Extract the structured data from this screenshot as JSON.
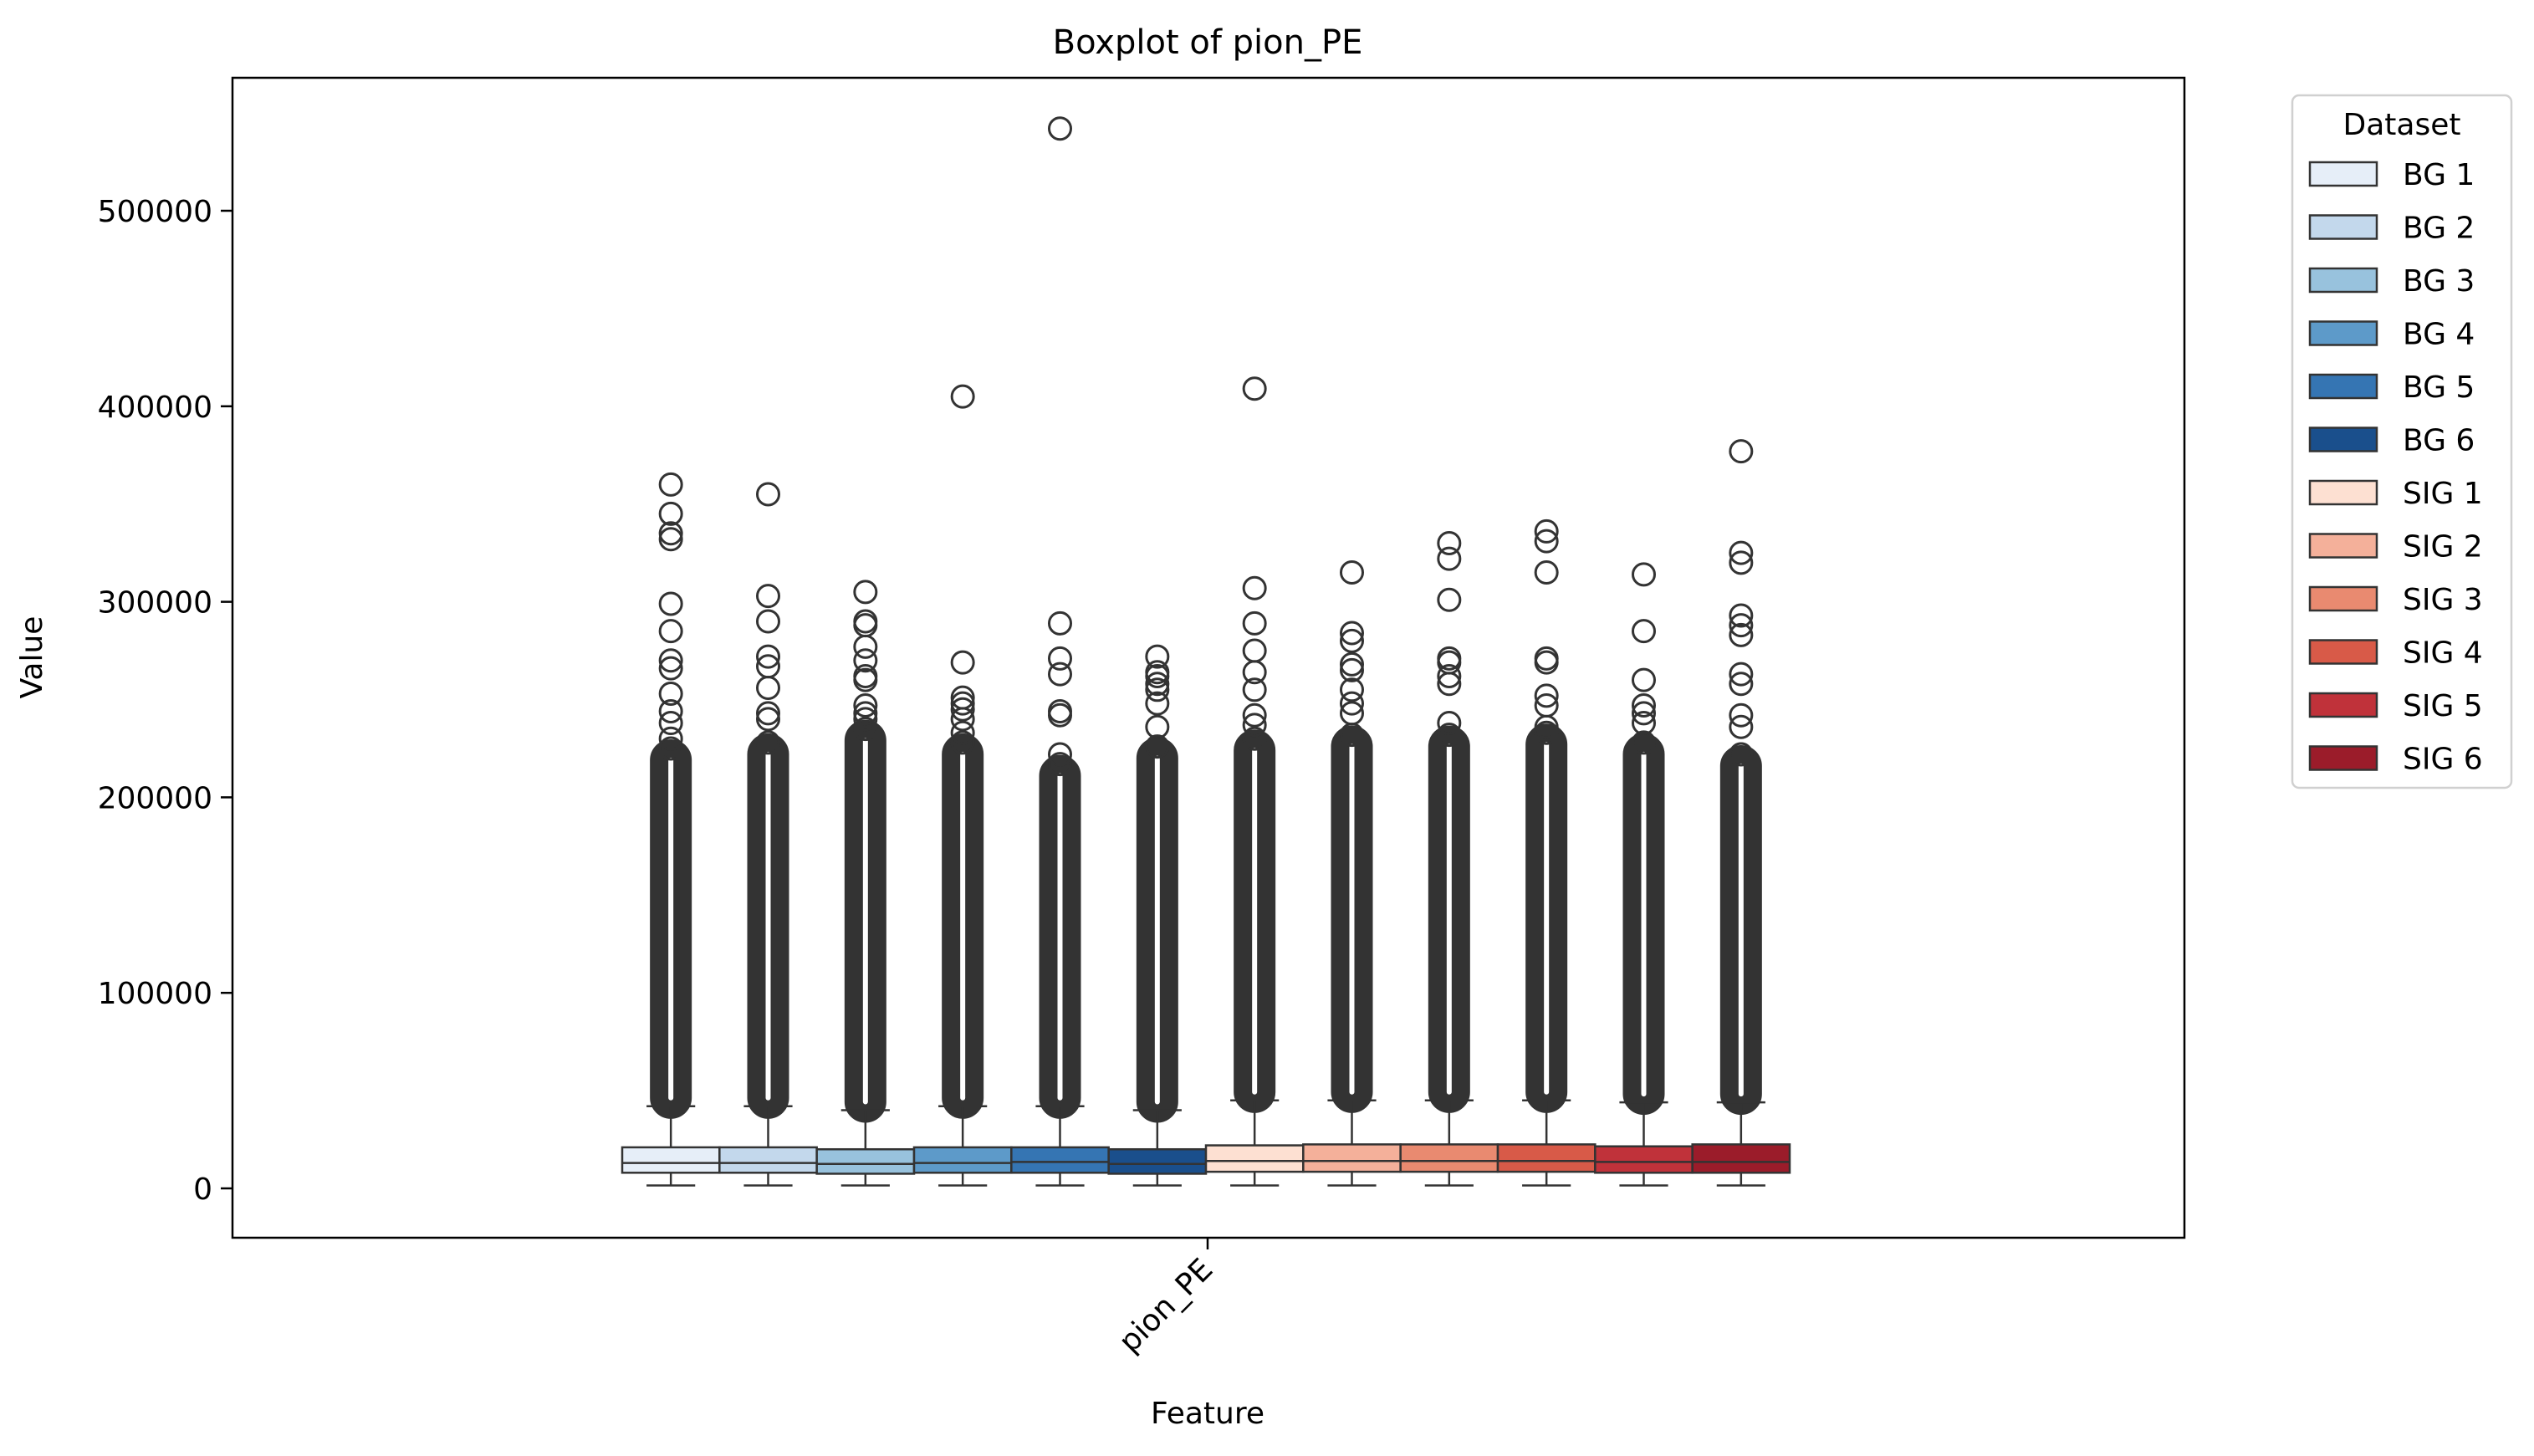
{
  "chart_data": {
    "type": "boxplot",
    "title": "Boxplot of pion_PE",
    "xlabel": "Feature",
    "ylabel": "Value",
    "categories": [
      "pion_PE"
    ],
    "ylim": [
      -26000,
      570000
    ],
    "yticks": [
      0,
      100000,
      200000,
      300000,
      400000,
      500000
    ],
    "ytick_labels": [
      "0",
      "100000",
      "200000",
      "300000",
      "400000",
      "500000"
    ],
    "grid": false,
    "legend": {
      "title": "Dataset",
      "placement": "outside-right-top"
    },
    "series": [
      {
        "name": "BG 1",
        "color": "#e6eef8",
        "min": 1500,
        "q1": 8000,
        "median": 13000,
        "q3": 21000,
        "whisker_high": 42000,
        "outlier_max": 360000,
        "sparse_outliers": [
          345000,
          335000,
          332000,
          299000,
          285000,
          270000,
          266000,
          253000,
          244000,
          238000,
          230000,
          225000
        ]
      },
      {
        "name": "BG 2",
        "color": "#c3d8ec",
        "min": 1500,
        "q1": 8000,
        "median": 13000,
        "q3": 21000,
        "whisker_high": 42000,
        "outlier_max": 355000,
        "sparse_outliers": [
          303000,
          290000,
          272000,
          267000,
          256000,
          243000,
          240000,
          228000
        ]
      },
      {
        "name": "BG 3",
        "color": "#98c2dd",
        "min": 1500,
        "q1": 7500,
        "median": 12500,
        "q3": 20000,
        "whisker_high": 40000,
        "outlier_max": 305000,
        "sparse_outliers": [
          290000,
          288000,
          277000,
          270000,
          262000,
          260000,
          247000,
          243000,
          240000,
          235000
        ]
      },
      {
        "name": "BG 4",
        "color": "#5d9ac9",
        "min": 1500,
        "q1": 8000,
        "median": 13000,
        "q3": 21000,
        "whisker_high": 42000,
        "outlier_max": 405000,
        "sparse_outliers": [
          269000,
          251000,
          248000,
          245000,
          240000,
          233000,
          228000
        ]
      },
      {
        "name": "BG 5",
        "color": "#3575b3",
        "min": 1500,
        "q1": 8000,
        "median": 13500,
        "q3": 21000,
        "whisker_high": 42000,
        "outlier_max": 542000,
        "sparse_outliers": [
          289000,
          271000,
          263000,
          244000,
          242000,
          222000,
          217000
        ]
      },
      {
        "name": "BG 6",
        "color": "#1a4f8c",
        "min": 1500,
        "q1": 7500,
        "median": 12500,
        "q3": 20000,
        "whisker_high": 40000,
        "outlier_max": 272000,
        "sparse_outliers": [
          264000,
          262000,
          258000,
          255000,
          248000,
          236000,
          226000
        ]
      },
      {
        "name": "SIG 1",
        "color": "#fde0d2",
        "min": 1500,
        "q1": 8500,
        "median": 14000,
        "q3": 22000,
        "whisker_high": 45000,
        "outlier_max": 409000,
        "sparse_outliers": [
          307000,
          289000,
          275000,
          264000,
          255000,
          242000,
          237000,
          230000
        ]
      },
      {
        "name": "SIG 2",
        "color": "#f4b09a",
        "min": 1500,
        "q1": 8500,
        "median": 14000,
        "q3": 22500,
        "whisker_high": 45000,
        "outlier_max": 315000,
        "sparse_outliers": [
          284000,
          280000,
          268000,
          265000,
          255000,
          248000,
          243000,
          232000
        ]
      },
      {
        "name": "SIG 3",
        "color": "#e98a70",
        "min": 1500,
        "q1": 8500,
        "median": 14000,
        "q3": 22500,
        "whisker_high": 45000,
        "outlier_max": 330000,
        "sparse_outliers": [
          322000,
          301000,
          271000,
          269000,
          262000,
          258000,
          238000,
          232000
        ]
      },
      {
        "name": "SIG 4",
        "color": "#d85a48",
        "min": 1500,
        "q1": 8500,
        "median": 14000,
        "q3": 22500,
        "whisker_high": 45000,
        "outlier_max": 336000,
        "sparse_outliers": [
          331000,
          315000,
          271000,
          269000,
          252000,
          247000,
          236000,
          233000
        ]
      },
      {
        "name": "SIG 5",
        "color": "#c0323a",
        "min": 1500,
        "q1": 8000,
        "median": 13500,
        "q3": 21500,
        "whisker_high": 44000,
        "outlier_max": 314000,
        "sparse_outliers": [
          285000,
          260000,
          247000,
          243000,
          238000,
          228000
        ]
      },
      {
        "name": "SIG 6",
        "color": "#9b1c2a",
        "min": 1500,
        "q1": 8000,
        "median": 13500,
        "q3": 22500,
        "whisker_high": 44000,
        "outlier_max": 377000,
        "sparse_outliers": [
          325000,
          320000,
          293000,
          288000,
          283000,
          263000,
          258000,
          242000,
          236000,
          222000
        ]
      }
    ]
  }
}
